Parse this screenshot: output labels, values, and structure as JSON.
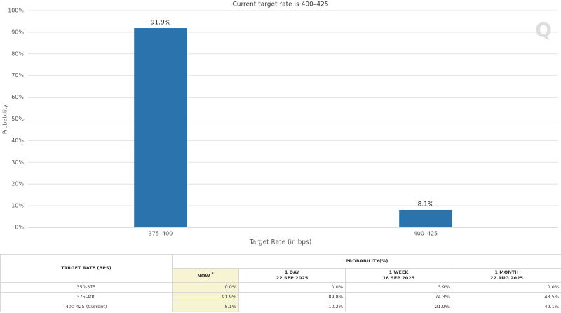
{
  "chart_data": {
    "type": "bar",
    "title": "Current target rate is 400–425",
    "logo": "Q",
    "x_label": "Target Rate (in bps)",
    "y_label": "Probability",
    "categories": [
      "375–400",
      "400–425"
    ],
    "values": [
      91.9,
      8.1
    ],
    "value_labels": [
      "91.9%",
      "8.1%"
    ],
    "color": "#2a73ad",
    "grid": true,
    "ylim": [
      0,
      100
    ],
    "yticks": [
      {
        "value": 0,
        "label": "0%"
      },
      {
        "value": 10,
        "label": "10%"
      },
      {
        "value": 20,
        "label": "20%"
      },
      {
        "value": 30,
        "label": "30%"
      },
      {
        "value": 40,
        "label": "40%"
      },
      {
        "value": 50,
        "label": "50%"
      },
      {
        "value": 60,
        "label": "60%"
      },
      {
        "value": 70,
        "label": "70%"
      },
      {
        "value": 80,
        "label": "80%"
      },
      {
        "value": 90,
        "label": "90%"
      },
      {
        "value": 100,
        "label": "100%"
      }
    ]
  },
  "table": {
    "row_header": "TARGET RATE (BPS)",
    "group_header": "PROBABILITY(%)",
    "columns": [
      {
        "label": "NOW",
        "note": "*"
      },
      {
        "label": "1 DAY",
        "date": "22 SEP 2025"
      },
      {
        "label": "1 WEEK",
        "date": "16 SEP 2025"
      },
      {
        "label": "1 MONTH",
        "date": "22 AUG 2025"
      }
    ],
    "rows": [
      [
        "350-375",
        "0.0%",
        "0.0%",
        "3.9%",
        "0.0%"
      ],
      [
        "375-400",
        "91.9%",
        "89.8%",
        "74.3%",
        "43.5%"
      ],
      [
        "400-425 (Current)",
        "8.1%",
        "10.2%",
        "21.9%",
        "49.1%"
      ]
    ]
  }
}
